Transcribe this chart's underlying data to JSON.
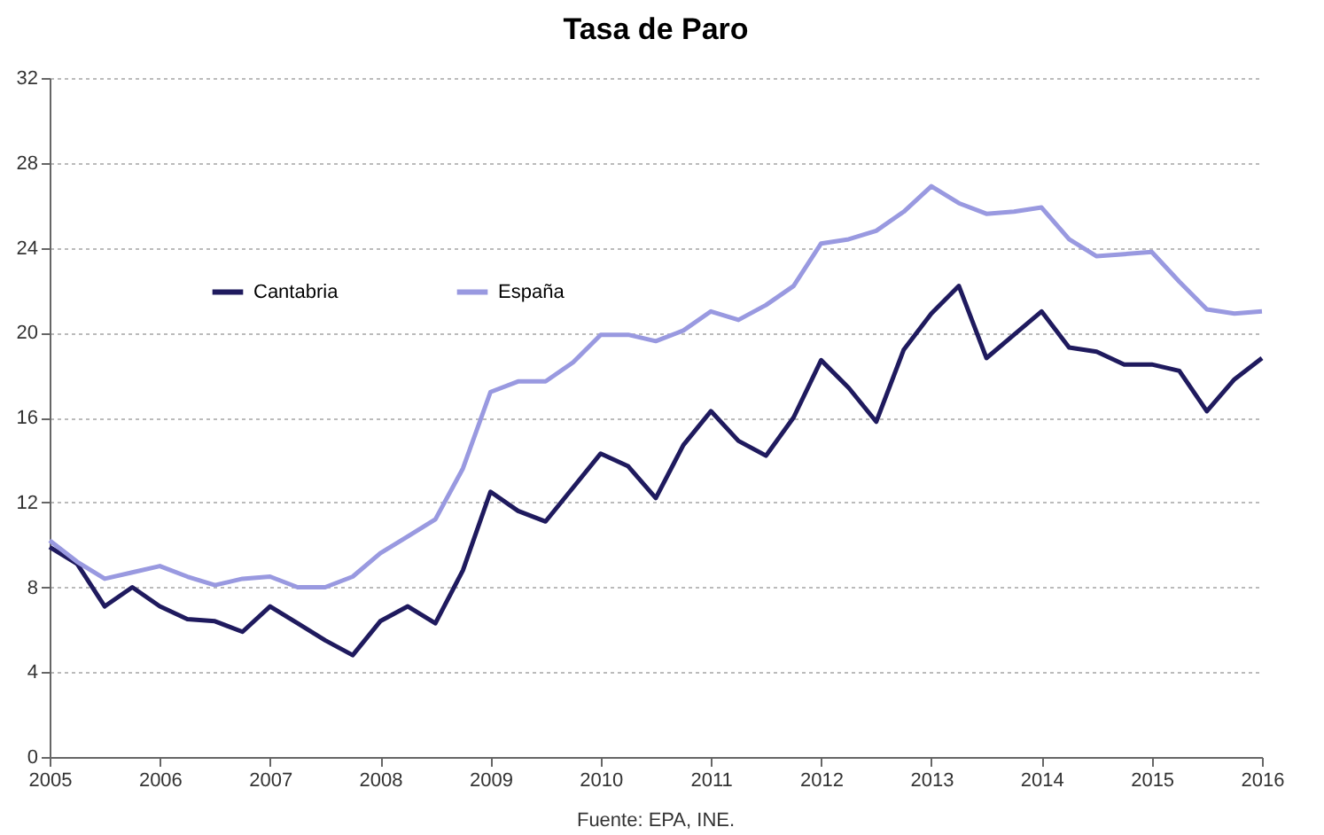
{
  "chart_data": {
    "type": "line",
    "title": "Tasa de Paro",
    "annotations": [
      "Fuente: EPA, INE."
    ],
    "x": [
      2005,
      2005.25,
      2005.5,
      2005.75,
      2006,
      2006.25,
      2006.5,
      2006.75,
      2007,
      2007.25,
      2007.5,
      2007.75,
      2008,
      2008.25,
      2008.5,
      2008.75,
      2009,
      2009.25,
      2009.5,
      2009.75,
      2010,
      2010.25,
      2010.5,
      2010.75,
      2011,
      2011.25,
      2011.5,
      2011.75,
      2012,
      2012.25,
      2012.5,
      2012.75,
      2013,
      2013.25,
      2013.5,
      2013.75,
      2014,
      2014.25,
      2014.5,
      2014.75,
      2015,
      2015.25,
      2015.5,
      2015.75,
      2016
    ],
    "series": [
      {
        "name": "Cantabria",
        "color": "#1f1a5e",
        "values": [
          9.9,
          9.1,
          7.1,
          8.0,
          7.1,
          6.5,
          6.4,
          5.9,
          7.1,
          6.3,
          5.5,
          4.8,
          6.4,
          7.1,
          6.3,
          8.8,
          12.5,
          11.6,
          11.1,
          12.7,
          14.3,
          13.7,
          12.2,
          14.7,
          16.3,
          14.9,
          14.2,
          16.0,
          18.7,
          17.4,
          15.8,
          19.2,
          20.9,
          22.2,
          18.8,
          19.9,
          21.0,
          19.3,
          19.1,
          18.5,
          18.5,
          18.2,
          16.3,
          17.8,
          18.8
        ]
      },
      {
        "name": "España",
        "color": "#9999e0",
        "values": [
          10.2,
          9.2,
          8.4,
          8.7,
          9.0,
          8.5,
          8.1,
          8.4,
          8.5,
          8.0,
          8.0,
          8.5,
          9.6,
          10.4,
          11.2,
          13.6,
          17.2,
          17.7,
          17.7,
          18.6,
          19.9,
          19.9,
          19.6,
          20.1,
          21.0,
          20.6,
          21.3,
          22.2,
          24.2,
          24.4,
          24.8,
          25.7,
          26.9,
          26.1,
          25.6,
          25.7,
          25.9,
          24.4,
          23.6,
          23.7,
          23.8,
          22.4,
          21.1,
          20.9,
          21.0
        ]
      }
    ],
    "xlim": [
      2005,
      2016
    ],
    "xticks": [
      2005,
      2006,
      2007,
      2008,
      2009,
      2010,
      2011,
      2012,
      2013,
      2014,
      2015,
      2016
    ],
    "ylim": [
      0,
      32
    ],
    "yticks": [
      0,
      4,
      8,
      12,
      16,
      20,
      24,
      28,
      32
    ],
    "grid": "y",
    "legend": "top left",
    "marker": "none",
    "line_style": "solid"
  }
}
